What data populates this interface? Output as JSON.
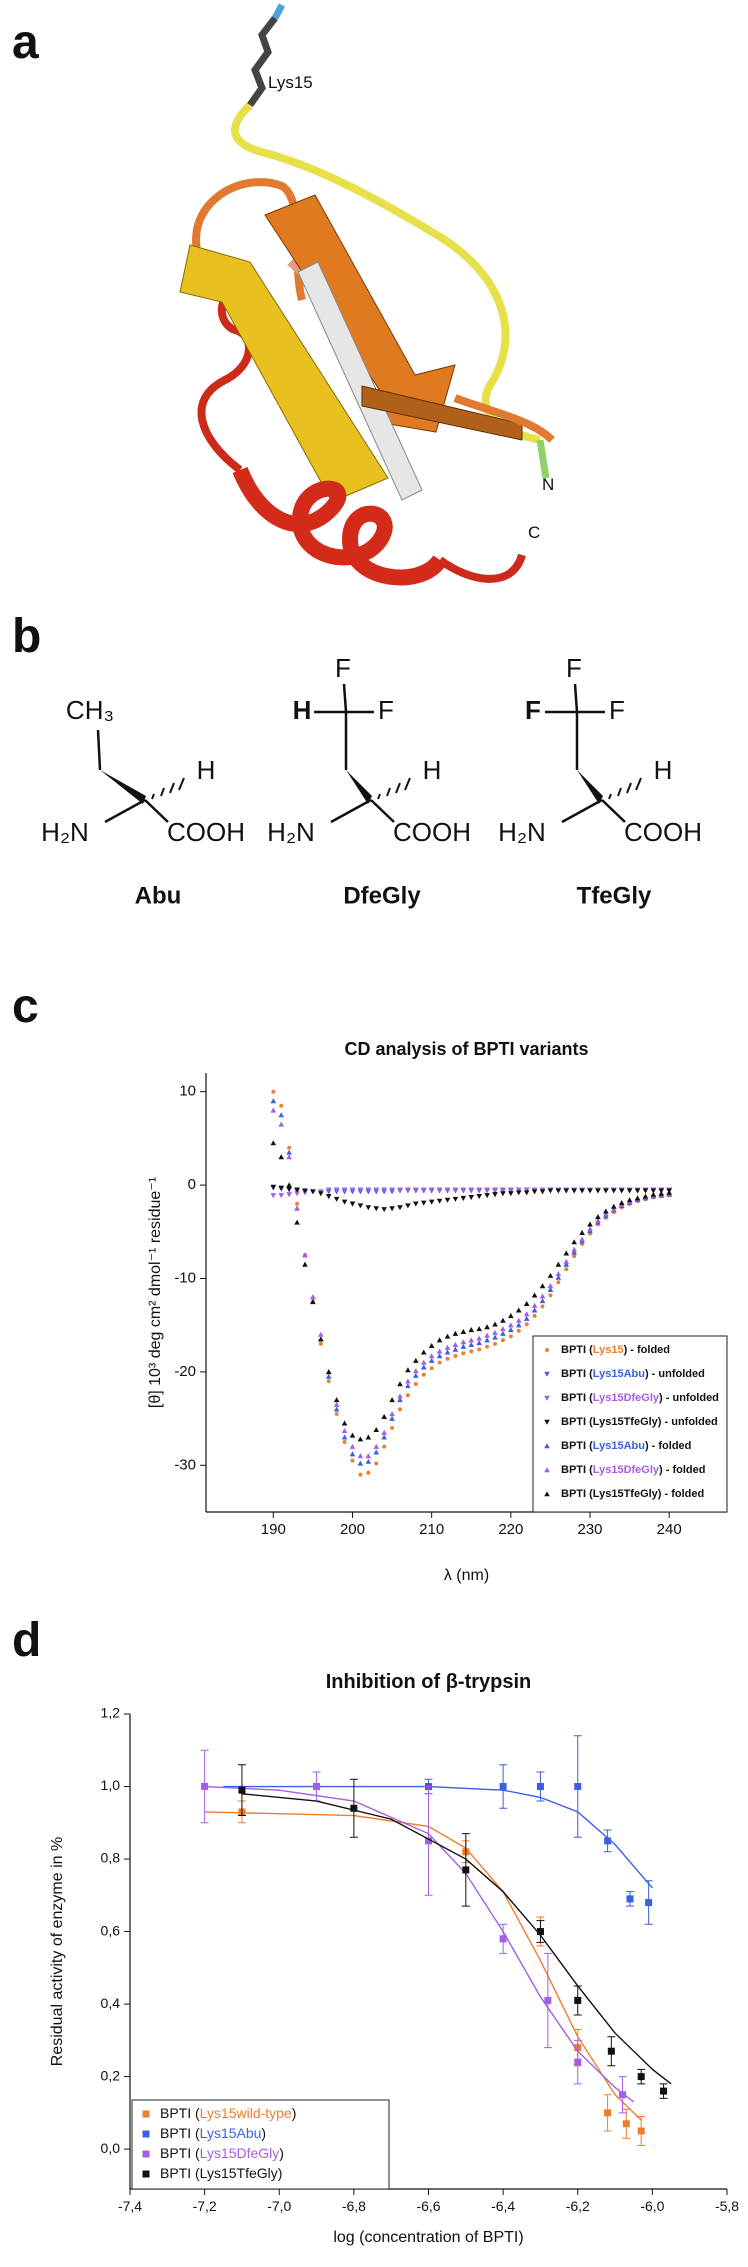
{
  "figure": {
    "panel_labels": [
      "a",
      "b",
      "c",
      "d"
    ],
    "structure": {
      "residue": "Lys15",
      "n_terminus": "N",
      "c_terminus": "C"
    },
    "molecules": [
      {
        "name": "Abu",
        "side_chain": [
          "CH₃"
        ],
        "alpha_h": "H",
        "amine": "H₂N",
        "acid": "COOH"
      },
      {
        "name": "DfeGly",
        "side_chain": [
          "H",
          "F",
          "F"
        ],
        "alpha_h": "H",
        "amine": "H₂N",
        "acid": "COOH"
      },
      {
        "name": "TfeGly",
        "side_chain": [
          "F",
          "F",
          "F"
        ],
        "alpha_h": "H",
        "amine": "H₂N",
        "acid": "COOH"
      }
    ]
  },
  "chart_data": [
    {
      "type": "scatter",
      "title": "CD analysis of BPTI variants",
      "x_label": "λ (nm)",
      "y_label": "[θ] 10³ deg cm² dmol⁻¹ residue⁻¹",
      "xlim": [
        181.5,
        247.3
      ],
      "ylim": [
        -35,
        12
      ],
      "xticks": [
        190,
        200,
        210,
        220,
        230,
        240
      ],
      "yticks": [
        10,
        0,
        -10,
        -20,
        -30
      ],
      "legend": "lower right",
      "x": [
        190,
        191,
        192,
        193,
        194,
        195,
        196,
        197,
        198,
        199,
        200,
        201,
        202,
        203,
        204,
        205,
        206,
        207,
        208,
        209,
        210,
        211,
        212,
        213,
        214,
        215,
        216,
        217,
        218,
        219,
        220,
        221,
        222,
        223,
        224,
        225,
        226,
        227,
        228,
        229,
        230,
        231,
        232,
        233,
        234,
        235,
        236,
        237,
        238,
        239,
        240
      ],
      "series": [
        {
          "name": "BPTI (Lys15) - folded",
          "color": "#ef7d2d",
          "marker": "circle",
          "values": [
            10,
            8.5,
            4,
            -2,
            -7.5,
            -12.5,
            -17,
            -21,
            -24.5,
            -27.5,
            -29.5,
            -31,
            -30.8,
            -29.8,
            -28,
            -26,
            -24,
            -22.5,
            -21.3,
            -20.3,
            -19.6,
            -19,
            -18.6,
            -18.3,
            -18,
            -17.8,
            -17.6,
            -17.3,
            -17,
            -16.6,
            -16.2,
            -15.6,
            -14.9,
            -14,
            -13,
            -11.8,
            -10.4,
            -9,
            -7.6,
            -6.3,
            -5.2,
            -4.2,
            -3.5,
            -2.9,
            -2.4,
            -2,
            -1.7,
            -1.5,
            -1.3,
            -1.2,
            -1.1
          ]
        },
        {
          "name": "BPTI (Lys15Abu) - unfolded",
          "color": "#3a5fe0",
          "marker": "triangle-down",
          "values": [
            -0.3,
            -0.4,
            -0.5,
            -0.6,
            -0.7,
            -0.7,
            -0.7,
            -0.7,
            -0.7,
            -0.7,
            -0.7,
            -0.7,
            -0.7,
            -0.7,
            -0.7,
            -0.7,
            -0.6,
            -0.6,
            -0.6,
            -0.6,
            -0.6,
            -0.6,
            -0.6,
            -0.6,
            -0.6,
            -0.6,
            -0.6,
            -0.6,
            -0.6,
            -0.6,
            -0.6,
            -0.5,
            -0.5,
            -0.5,
            -0.5,
            -0.5,
            -0.5,
            -0.5,
            -0.5,
            -0.5,
            -0.5,
            -0.5,
            -0.5,
            -0.5,
            -0.5,
            -0.5,
            -0.5,
            -0.5,
            -0.5,
            -0.5,
            -0.5
          ]
        },
        {
          "name": "BPTI (Lys15DfeGly) - unfolded",
          "color": "#a45ee6",
          "marker": "triangle-down",
          "values": [
            -1.1,
            -1.1,
            -1,
            -0.9,
            -0.8,
            -0.7,
            -0.7,
            -0.5,
            -0.5,
            -0.5,
            -0.5,
            -0.5,
            -0.5,
            -0.5,
            -0.5,
            -0.5,
            -0.5,
            -0.5,
            -0.5,
            -0.5,
            -0.5,
            -0.5,
            -0.5,
            -0.5,
            -0.5,
            -0.5,
            -0.5,
            -0.5,
            -0.5,
            -0.5,
            -0.5,
            -0.5,
            -0.5,
            -0.5,
            -0.5,
            -0.5,
            -0.5,
            -0.5,
            -0.5,
            -0.5,
            -0.5,
            -0.5,
            -0.5,
            -0.5,
            -0.5,
            -0.5,
            -0.5,
            -0.5,
            -0.5,
            -0.5,
            -0.5
          ]
        },
        {
          "name": "BPTI (Lys15TfeGly) - unfolded",
          "color": "#111111",
          "marker": "triangle-down",
          "values": [
            -0.2,
            -0.3,
            -0.4,
            -0.5,
            -0.6,
            -0.7,
            -0.9,
            -1.2,
            -1.5,
            -1.8,
            -2,
            -2.2,
            -2.4,
            -2.5,
            -2.6,
            -2.5,
            -2.4,
            -2.2,
            -2,
            -1.9,
            -1.8,
            -1.7,
            -1.6,
            -1.5,
            -1.4,
            -1.3,
            -1.2,
            -1.1,
            -1,
            -0.9,
            -0.9,
            -0.8,
            -0.8,
            -0.7,
            -0.7,
            -0.6,
            -0.6,
            -0.6,
            -0.6,
            -0.6,
            -0.6,
            -0.6,
            -0.6,
            -0.6,
            -0.6,
            -0.6,
            -0.6,
            -0.6,
            -0.6,
            -0.6,
            -0.6
          ]
        },
        {
          "name": "BPTI (Lys15Abu) - folded",
          "color": "#3a5fe0",
          "marker": "triangle-up",
          "values": [
            9,
            7.5,
            3.5,
            -2.5,
            -7.5,
            -12,
            -16.5,
            -20.5,
            -24,
            -27,
            -28.8,
            -29.8,
            -29.6,
            -28.6,
            -27,
            -25,
            -23,
            -21.5,
            -20.4,
            -19.5,
            -18.8,
            -18.3,
            -17.9,
            -17.6,
            -17.3,
            -17.1,
            -16.9,
            -16.6,
            -16.3,
            -15.9,
            -15.5,
            -15,
            -14.3,
            -13.4,
            -12.4,
            -11.2,
            -9.9,
            -8.5,
            -7.2,
            -6,
            -4.9,
            -4,
            -3.3,
            -2.7,
            -2.2,
            -1.9,
            -1.6,
            -1.4,
            -1.2,
            -1.1,
            -1
          ]
        },
        {
          "name": "BPTI (Lys15DfeGly) - folded",
          "color": "#a45ee6",
          "marker": "triangle-up",
          "values": [
            8,
            6.5,
            3,
            -2.5,
            -7.5,
            -12,
            -16,
            -20,
            -23.5,
            -26.3,
            -28,
            -29,
            -29,
            -28,
            -26.5,
            -24.5,
            -22.6,
            -21,
            -19.9,
            -19,
            -18.3,
            -17.8,
            -17.4,
            -17.1,
            -16.8,
            -16.6,
            -16.4,
            -16.1,
            -15.8,
            -15.4,
            -15,
            -14.5,
            -13.8,
            -12.9,
            -11.9,
            -10.8,
            -9.5,
            -8.2,
            -6.9,
            -5.8,
            -4.7,
            -3.8,
            -3.1,
            -2.6,
            -2.1,
            -1.8,
            -1.5,
            -1.3,
            -1.1,
            -1,
            -0.9
          ]
        },
        {
          "name": "BPTI (Lys15TfeGly) - folded",
          "color": "#111111",
          "marker": "triangle-up",
          "values": [
            4.5,
            3,
            0,
            -4,
            -8.5,
            -12.5,
            -16.5,
            -20,
            -23,
            -25.5,
            -26.8,
            -27.2,
            -27,
            -26.2,
            -24.8,
            -23,
            -21.3,
            -19.8,
            -18.8,
            -17.9,
            -17.2,
            -16.6,
            -16.2,
            -15.9,
            -15.7,
            -15.5,
            -15.4,
            -15.2,
            -14.9,
            -14.5,
            -14,
            -13.4,
            -12.7,
            -11.8,
            -10.8,
            -9.7,
            -8.5,
            -7.3,
            -6.1,
            -5.1,
            -4.2,
            -3.4,
            -2.8,
            -2.3,
            -1.9,
            -1.6,
            -1.4,
            -1.2,
            -1,
            -0.9,
            -0.8
          ]
        }
      ]
    },
    {
      "type": "scatter",
      "title": "Inhibition of β-trypsin",
      "x_label": "log (concentration of BPTI)",
      "y_label": "Residual activity of enzyme in %",
      "xlim": [
        -7.4,
        -5.8
      ],
      "ylim": [
        -0.11,
        1.2
      ],
      "xticks": [
        {
          "value": -7.4,
          "label": "-7,4"
        },
        {
          "value": -7.2,
          "label": "-7,2"
        },
        {
          "value": -7,
          "label": "-7,0"
        },
        {
          "value": -6.8,
          "label": "-6,8"
        },
        {
          "value": -6.6,
          "label": "-6,6"
        },
        {
          "value": -6.4,
          "label": "-6,4"
        },
        {
          "value": -6.2,
          "label": "-6,2"
        },
        {
          "value": -6,
          "label": "-6,0"
        },
        {
          "value": -5.8,
          "label": "-5,8"
        }
      ],
      "yticks": [
        {
          "value": 0,
          "label": "0,0"
        },
        {
          "value": 0.2,
          "label": "0,2"
        },
        {
          "value": 0.4,
          "label": "0,4"
        },
        {
          "value": 0.6,
          "label": "0,6"
        },
        {
          "value": 0.8,
          "label": "0,8"
        },
        {
          "value": 1,
          "label": "1,0"
        },
        {
          "value": 1.2,
          "label": "1,2"
        }
      ],
      "legend": "lower left",
      "series": [
        {
          "name": "BPTI (Lys15wild-type)",
          "color": "#ef7d2d",
          "marker": "square",
          "x": [
            -7.1,
            -6.5,
            -6.3,
            -6.2,
            -6.12,
            -6.07,
            -6.03
          ],
          "values": [
            0.93,
            0.82,
            0.6,
            0.28,
            0.1,
            0.07,
            0.05
          ],
          "errors": [
            0.03,
            0.03,
            0.04,
            0.05,
            0.05,
            0.04,
            0.04
          ],
          "fit": {
            "x": [
              -7.2,
              -6.8,
              -6.6,
              -6.5,
              -6.4,
              -6.3,
              -6.2,
              -6.1,
              -6.03
            ],
            "y": [
              0.93,
              0.92,
              0.89,
              0.83,
              0.71,
              0.52,
              0.31,
              0.15,
              0.08
            ]
          }
        },
        {
          "name": "BPTI (Lys15Abu)",
          "color": "#3a5fe0",
          "marker": "square",
          "x": [
            -6.6,
            -6.4,
            -6.3,
            -6.2,
            -6.12,
            -6.06,
            -6.01
          ],
          "values": [
            1,
            1,
            1,
            1,
            0.85,
            0.69,
            0.68
          ],
          "errors": [
            0.02,
            0.06,
            0.04,
            0.14,
            0.03,
            0.02,
            0.06
          ],
          "fit": {
            "x": [
              -7.15,
              -6.6,
              -6.4,
              -6.3,
              -6.2,
              -6.1,
              -6
            ],
            "y": [
              1,
              1,
              0.99,
              0.97,
              0.93,
              0.84,
              0.72
            ]
          }
        },
        {
          "name": "BPTI (Lys15DfeGly)",
          "color": "#a45ee6",
          "marker": "square",
          "x": [
            -7.2,
            -6.9,
            -6.6,
            -6.4,
            -6.28,
            -6.2,
            -6.08
          ],
          "values": [
            1,
            1,
            0.85,
            0.58,
            0.41,
            0.24,
            0.15
          ],
          "errors": [
            0.1,
            0.04,
            0.15,
            0.04,
            0.13,
            0.06,
            0.05
          ],
          "fit": {
            "x": [
              -7.2,
              -7,
              -6.8,
              -6.6,
              -6.5,
              -6.4,
              -6.3,
              -6.2,
              -6.1,
              -6.05
            ],
            "y": [
              1,
              0.99,
              0.96,
              0.87,
              0.76,
              0.6,
              0.42,
              0.27,
              0.17,
              0.13
            ]
          }
        },
        {
          "name": "BPTI (Lys15TfeGly)",
          "color": "#111111",
          "marker": "square",
          "x": [
            -7.1,
            -6.8,
            -6.5,
            -6.3,
            -6.2,
            -6.11,
            -6.03,
            -5.97
          ],
          "values": [
            0.99,
            0.94,
            0.77,
            0.6,
            0.41,
            0.27,
            0.2,
            0.16
          ],
          "errors": [
            0.07,
            0.08,
            0.1,
            0.03,
            0.04,
            0.04,
            0.02,
            0.02
          ],
          "fit": {
            "x": [
              -7.1,
              -6.9,
              -6.7,
              -6.5,
              -6.4,
              -6.3,
              -6.2,
              -6.1,
              -6,
              -5.95
            ],
            "y": [
              0.98,
              0.96,
              0.91,
              0.8,
              0.71,
              0.59,
              0.45,
              0.32,
              0.22,
              0.18
            ]
          }
        }
      ]
    }
  ]
}
